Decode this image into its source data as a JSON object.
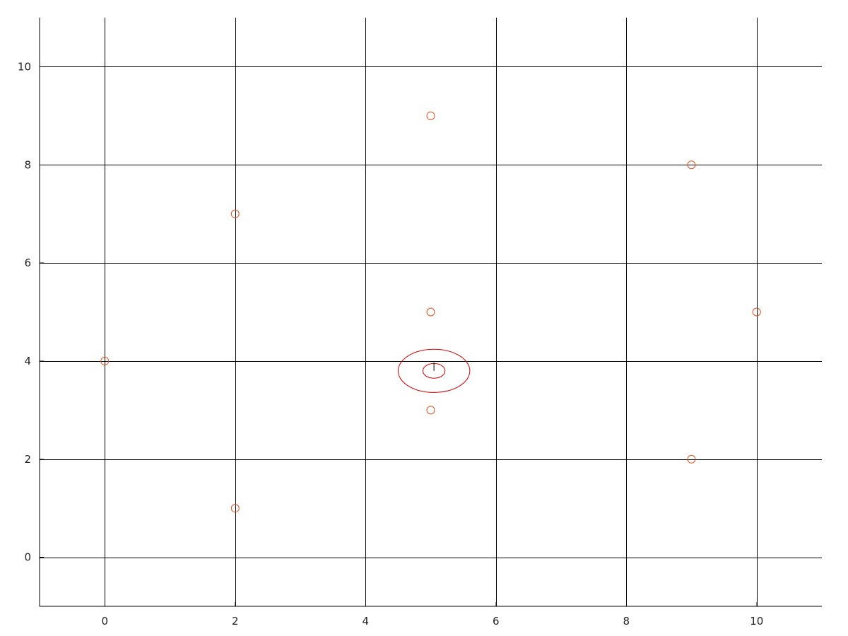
{
  "chart_data": {
    "type": "scatter",
    "title": "",
    "xlabel": "",
    "ylabel": "",
    "xlim": [
      -1,
      11
    ],
    "ylim": [
      -1,
      11
    ],
    "grid": true,
    "x_ticks": [
      0,
      2,
      4,
      6,
      8,
      10
    ],
    "y_ticks": [
      0,
      2,
      4,
      6,
      8,
      10
    ],
    "x_tick_labels": [
      "0",
      "2",
      "4",
      "6",
      "8",
      "10"
    ],
    "y_tick_labels": [
      "0",
      "2",
      "4",
      "6",
      "8",
      "10"
    ],
    "series": [
      {
        "marker": "circle-open",
        "color": "#d9531e",
        "points": [
          {
            "x": 0,
            "y": 4
          },
          {
            "x": 2,
            "y": 1
          },
          {
            "x": 2,
            "y": 7
          },
          {
            "x": 5,
            "y": 3
          },
          {
            "x": 5,
            "y": 5
          },
          {
            "x": 5,
            "y": 9
          },
          {
            "x": 9,
            "y": 2
          },
          {
            "x": 9,
            "y": 8
          },
          {
            "x": 10,
            "y": 5
          }
        ]
      }
    ],
    "annotations": {
      "color": "#cc0000",
      "ellipses": [
        {
          "cx": 5.05,
          "cy": 3.8,
          "rx": 0.55,
          "ry": 0.44
        },
        {
          "cx": 5.05,
          "cy": 3.8,
          "rx": 0.17,
          "ry": 0.15
        }
      ],
      "segments": [
        {
          "x1": 5.05,
          "y1": 3.8,
          "x2": 5.05,
          "y2": 3.97,
          "color": "#000000"
        }
      ]
    }
  }
}
